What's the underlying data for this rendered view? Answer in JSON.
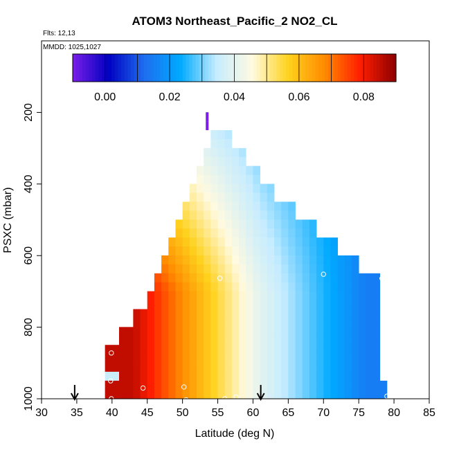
{
  "chart_data": {
    "type": "heatmap",
    "title": "ATOM3 Northeast_Pacific_2 NO2_CL",
    "flights_label": "Flts: 12,13",
    "mmdd_label": "MMDD: 1025,1027",
    "xlabel": "Latitude (deg N)",
    "ylabel": "PSXC (mbar)",
    "xlim": [
      30,
      85
    ],
    "ylim": [
      1000,
      0
    ],
    "x_ticks": [
      30,
      35,
      40,
      45,
      50,
      55,
      60,
      65,
      70,
      75,
      80,
      85
    ],
    "y_ticks": [
      200,
      400,
      600,
      800,
      1000
    ],
    "colorbar": {
      "range": [
        -0.01,
        0.09
      ],
      "ticks": [
        0.0,
        0.02,
        0.04,
        0.06,
        0.08
      ],
      "tick_labels": [
        "0.00",
        "0.02",
        "0.04",
        "0.06",
        "0.08"
      ],
      "colors": [
        "#7a1fe8",
        "#0000c0",
        "#1e6ef0",
        "#00aaff",
        "#c6ecff",
        "#fffae0",
        "#ffd21e",
        "#ff8c00",
        "#ff1e00",
        "#8c0000"
      ]
    },
    "pressure_bin_mbar": 25,
    "latitude_bin_deg": 1,
    "columns": [
      {
        "lat": 39.5,
        "pmin": 862,
        "pmax": 1012
      },
      {
        "lat": 40.5,
        "pmin": 862,
        "pmax": 1012
      },
      {
        "lat": 41.5,
        "pmin": 812,
        "pmax": 1012
      },
      {
        "lat": 42.5,
        "pmin": 812,
        "pmax": 1012
      },
      {
        "lat": 43.5,
        "pmin": 762,
        "pmax": 1012
      },
      {
        "lat": 44.5,
        "pmin": 762,
        "pmax": 1012
      },
      {
        "lat": 45.5,
        "pmin": 712,
        "pmax": 1012
      },
      {
        "lat": 46.5,
        "pmin": 662,
        "pmax": 1012
      },
      {
        "lat": 47.5,
        "pmin": 612,
        "pmax": 1012
      },
      {
        "lat": 48.5,
        "pmin": 562,
        "pmax": 1012
      },
      {
        "lat": 49.5,
        "pmin": 512,
        "pmax": 1012
      },
      {
        "lat": 50.5,
        "pmin": 462,
        "pmax": 1012
      },
      {
        "lat": 51.5,
        "pmin": 412,
        "pmax": 1012
      },
      {
        "lat": 52.5,
        "pmin": 362,
        "pmax": 1012
      },
      {
        "lat": 53.5,
        "pmin": 312,
        "pmax": 1012
      },
      {
        "lat": 54.5,
        "pmin": 262,
        "pmax": 1012
      },
      {
        "lat": 55.5,
        "pmin": 262,
        "pmax": 1012
      },
      {
        "lat": 56.5,
        "pmin": 262,
        "pmax": 1012
      },
      {
        "lat": 57.5,
        "pmin": 312,
        "pmax": 1012
      },
      {
        "lat": 58.5,
        "pmin": 312,
        "pmax": 1012
      },
      {
        "lat": 59.5,
        "pmin": 362,
        "pmax": 1012
      },
      {
        "lat": 60.5,
        "pmin": 362,
        "pmax": 1012
      },
      {
        "lat": 61.5,
        "pmin": 412,
        "pmax": 1012
      },
      {
        "lat": 62.5,
        "pmin": 412,
        "pmax": 1012
      },
      {
        "lat": 63.5,
        "pmin": 462,
        "pmax": 1012
      },
      {
        "lat": 64.5,
        "pmin": 462,
        "pmax": 1012
      },
      {
        "lat": 65.5,
        "pmin": 462,
        "pmax": 1012
      },
      {
        "lat": 66.5,
        "pmin": 512,
        "pmax": 1012
      },
      {
        "lat": 67.5,
        "pmin": 512,
        "pmax": 1012
      },
      {
        "lat": 68.5,
        "pmin": 512,
        "pmax": 1012
      },
      {
        "lat": 69.5,
        "pmin": 562,
        "pmax": 1012
      },
      {
        "lat": 70.5,
        "pmin": 562,
        "pmax": 1012
      },
      {
        "lat": 71.5,
        "pmin": 562,
        "pmax": 1012
      },
      {
        "lat": 72.5,
        "pmin": 612,
        "pmax": 1012
      },
      {
        "lat": 73.5,
        "pmin": 612,
        "pmax": 1012
      },
      {
        "lat": 74.5,
        "pmin": 612,
        "pmax": 1012
      },
      {
        "lat": 75.5,
        "pmin": 662,
        "pmax": 1012
      },
      {
        "lat": 76.5,
        "pmin": 662,
        "pmax": 1012
      },
      {
        "lat": 77.5,
        "pmin": 662,
        "pmax": 1012
      },
      {
        "lat": 78.5,
        "pmin": 962,
        "pmax": 1012
      }
    ],
    "value_model": {
      "description": "NO2_CL values estimated from the colour field (ppb-scale units as on the colour bar)",
      "low_lat_anchor": 43.0,
      "low_lat_value": 0.085,
      "boundary_lat": 61.0,
      "boundary_value": 0.04,
      "high_lat_anchor": 76.0,
      "high_lat_value": 0.015,
      "pressure_scale_mbar": 600
    },
    "special_cells": [
      {
        "lat": 53.5,
        "p": 212,
        "value": -0.01
      },
      {
        "lat": 53.5,
        "p": 237,
        "value": -0.01
      },
      {
        "lat": 39.5,
        "p": 937,
        "value": 0.035
      },
      {
        "lat": 40.5,
        "p": 937,
        "value": 0.035
      }
    ],
    "sample_points": [
      {
        "lat": 53.2,
        "p": 262
      },
      {
        "lat": 55.3,
        "p": 663
      },
      {
        "lat": 70.0,
        "p": 652
      },
      {
        "lat": 78.3,
        "p": 664
      },
      {
        "lat": 39.9,
        "p": 872
      },
      {
        "lat": 39.8,
        "p": 950
      },
      {
        "lat": 44.4,
        "p": 970
      },
      {
        "lat": 50.2,
        "p": 967
      },
      {
        "lat": 39.9,
        "p": 1000
      },
      {
        "lat": 50.5,
        "p": 1003
      },
      {
        "lat": 56.0,
        "p": 1000
      },
      {
        "lat": 57.6,
        "p": 995
      },
      {
        "lat": 79.0,
        "p": 993
      }
    ],
    "arrows": [
      {
        "lat": 34.7
      },
      {
        "lat": 61.1
      }
    ]
  }
}
